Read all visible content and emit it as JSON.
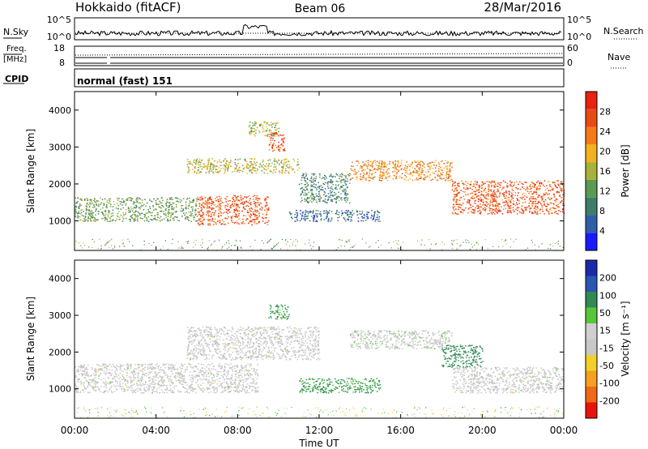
{
  "header": {
    "station": "Hokkaido (fitACF)",
    "beam": "Beam 06",
    "date": "28/Mar/2016"
  },
  "summary": {
    "nsky_label": "N.Sky",
    "nsky_ticks": [
      "10^5",
      "10^0"
    ],
    "nsearch_label": "N.Search",
    "freq_label_line1": "Freq.",
    "freq_label_line2": "[MHz]",
    "freq_ticks": [
      "18",
      "8"
    ],
    "nave_label": "Nave",
    "nave_ticks": [
      "60",
      "0"
    ],
    "cpid_label": "CPID",
    "cpid_value": "normal (fast) 151"
  },
  "x_axis": {
    "label": "Time UT",
    "ticks": [
      "00:00",
      "04:00",
      "08:00",
      "12:00",
      "16:00",
      "20:00",
      "00:00"
    ]
  },
  "colors": {
    "power_scale": [
      "#1a1aff",
      "#2f5fa8",
      "#3f7d6a",
      "#5a9a55",
      "#a7b23a",
      "#f2b21c",
      "#f57a1a",
      "#e94a14",
      "#e8220f"
    ],
    "velocity_scale": [
      "#e8140c",
      "#f06a14",
      "#f5a020",
      "#f3cf2a",
      "#c8c8c8",
      "#cfcfcf",
      "#55c83a",
      "#2f8a55",
      "#2a55b0",
      "#1a2aa8"
    ],
    "ground_scatter": "#c4c4c4"
  },
  "chart_data": [
    {
      "type": "heatmap",
      "title": "Power",
      "xlabel": "",
      "ylabel": "Slant Range [km]",
      "x_ticks": [
        "00:00",
        "04:00",
        "08:00",
        "12:00",
        "16:00",
        "20:00",
        "00:00"
      ],
      "xlim_hours": [
        0,
        24
      ],
      "y_ticks": [
        1000,
        2000,
        3000,
        4000
      ],
      "ylim": [
        200,
        4500
      ],
      "colorbar": {
        "label": "Power [dB]",
        "ticks": [
          4,
          8,
          12,
          16,
          20,
          24,
          28
        ],
        "range": [
          0,
          32
        ]
      },
      "echo_bands": [
        {
          "t0": 0.0,
          "t1": 6.0,
          "r0": 1000,
          "r1": 1650,
          "power": 13
        },
        {
          "t0": 6.0,
          "t1": 9.5,
          "r0": 900,
          "r1": 1700,
          "power": 26
        },
        {
          "t0": 5.5,
          "t1": 11.0,
          "r0": 2300,
          "r1": 2700,
          "power": 17
        },
        {
          "t0": 8.5,
          "t1": 10.0,
          "r0": 3300,
          "r1": 3700,
          "power": 16
        },
        {
          "t0": 9.5,
          "t1": 10.3,
          "r0": 2900,
          "r1": 3400,
          "power": 27
        },
        {
          "t0": 11.0,
          "t1": 13.5,
          "r0": 1500,
          "r1": 2300,
          "power": 10
        },
        {
          "t0": 10.5,
          "t1": 15.0,
          "r0": 1000,
          "r1": 1300,
          "power": 7
        },
        {
          "t0": 13.5,
          "t1": 18.5,
          "r0": 2100,
          "r1": 2650,
          "power": 22
        },
        {
          "t0": 18.5,
          "t1": 24.0,
          "r0": 1200,
          "r1": 2100,
          "power": 26
        }
      ]
    },
    {
      "type": "heatmap",
      "title": "Velocity",
      "xlabel": "Time UT",
      "ylabel": "Slant Range [km]",
      "x_ticks": [
        "00:00",
        "04:00",
        "08:00",
        "12:00",
        "16:00",
        "20:00",
        "00:00"
      ],
      "xlim_hours": [
        0,
        24
      ],
      "y_ticks": [
        1000,
        2000,
        3000,
        4000
      ],
      "ylim": [
        200,
        4500
      ],
      "colorbar": {
        "label": "Velocity [m s⁻¹]",
        "ticks": [
          -200,
          -100,
          -50,
          -15,
          15,
          50,
          100,
          200
        ],
        "range": [
          -250,
          250
        ]
      },
      "echo_bands": [
        {
          "t0": 0.0,
          "t1": 9.0,
          "r0": 900,
          "r1": 1700,
          "velocity": 0
        },
        {
          "t0": 5.5,
          "t1": 12.0,
          "r0": 1800,
          "r1": 2700,
          "velocity": 0
        },
        {
          "t0": 9.5,
          "t1": 10.5,
          "r0": 2900,
          "r1": 3300,
          "velocity": 60
        },
        {
          "t0": 11.0,
          "t1": 15.0,
          "r0": 900,
          "r1": 1300,
          "velocity": 60
        },
        {
          "t0": 13.5,
          "t1": 18.5,
          "r0": 2100,
          "r1": 2600,
          "velocity": 5
        },
        {
          "t0": 18.0,
          "t1": 20.0,
          "r0": 1600,
          "r1": 2200,
          "velocity": 70
        },
        {
          "t0": 18.5,
          "t1": 24.0,
          "r0": 900,
          "r1": 1600,
          "velocity": 0
        }
      ]
    }
  ]
}
